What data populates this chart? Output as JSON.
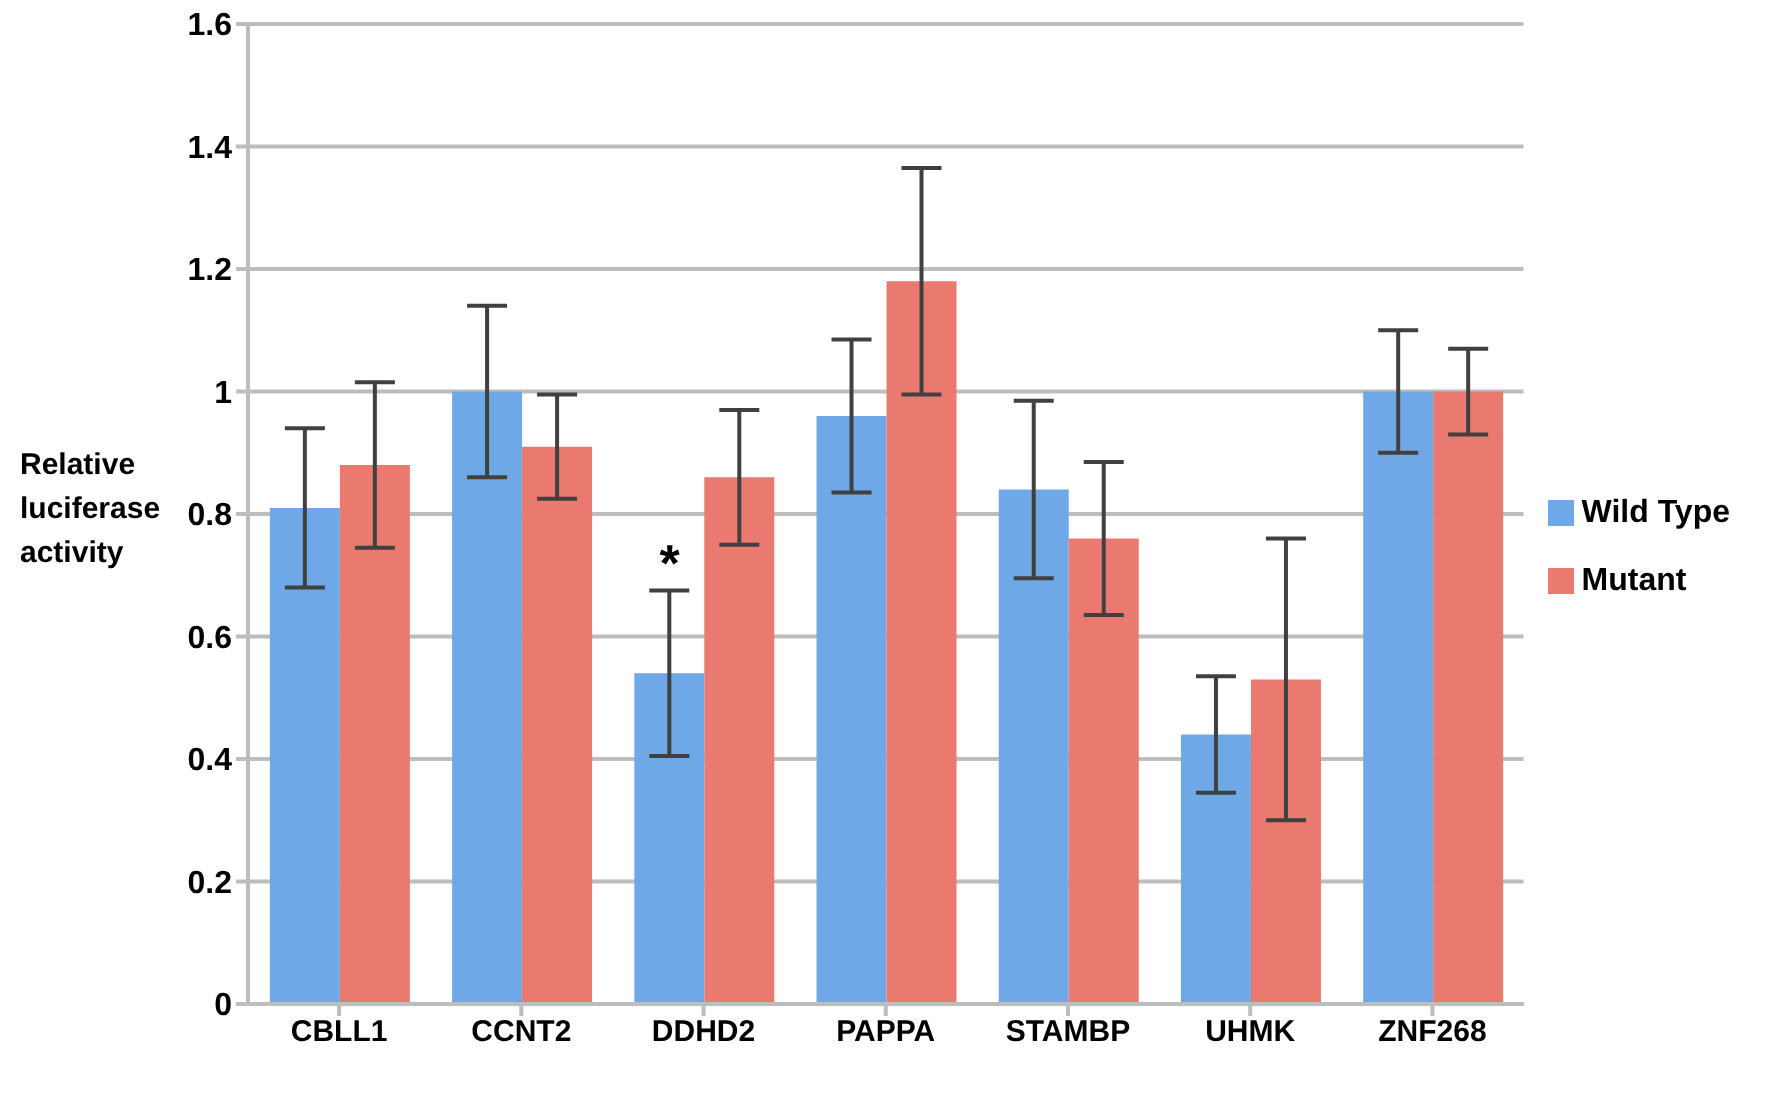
{
  "chart_data": {
    "type": "bar",
    "ylabel": "Relative luciferase activity",
    "categories": [
      "CBLL1",
      "CCNT2",
      "DDHD2",
      "PAPPA",
      "STAMBP",
      "UHMK",
      "ZNF268"
    ],
    "series": [
      {
        "name": "Wild Type",
        "color": "#6fa8e6",
        "values": [
          0.81,
          1.0,
          0.54,
          0.96,
          0.84,
          0.44,
          1.0
        ],
        "errors": [
          0.13,
          0.14,
          0.135,
          0.125,
          0.145,
          0.095,
          0.1
        ]
      },
      {
        "name": "Mutant",
        "color": "#ea7a70",
        "values": [
          0.88,
          0.91,
          0.86,
          1.18,
          0.76,
          0.53,
          1.0
        ],
        "errors": [
          0.135,
          0.085,
          0.11,
          0.185,
          0.125,
          0.23,
          0.07
        ]
      }
    ],
    "ylim": [
      0,
      1.6
    ],
    "yticks": [
      0,
      0.2,
      0.4,
      0.6,
      0.8,
      1,
      1.2,
      1.4,
      1.6
    ],
    "grid": "y",
    "legend": "right",
    "annotations": [
      {
        "text": "*",
        "x": "DDHD2",
        "y": 0.72
      }
    ]
  }
}
